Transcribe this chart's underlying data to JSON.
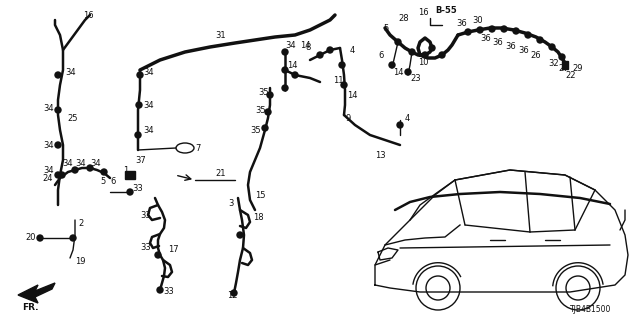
{
  "bg_color": "#ffffff",
  "line_color": "#111111",
  "text_color": "#111111",
  "part_number": "TJB4B1500",
  "fig_width": 6.4,
  "fig_height": 3.2,
  "dpi": 100
}
